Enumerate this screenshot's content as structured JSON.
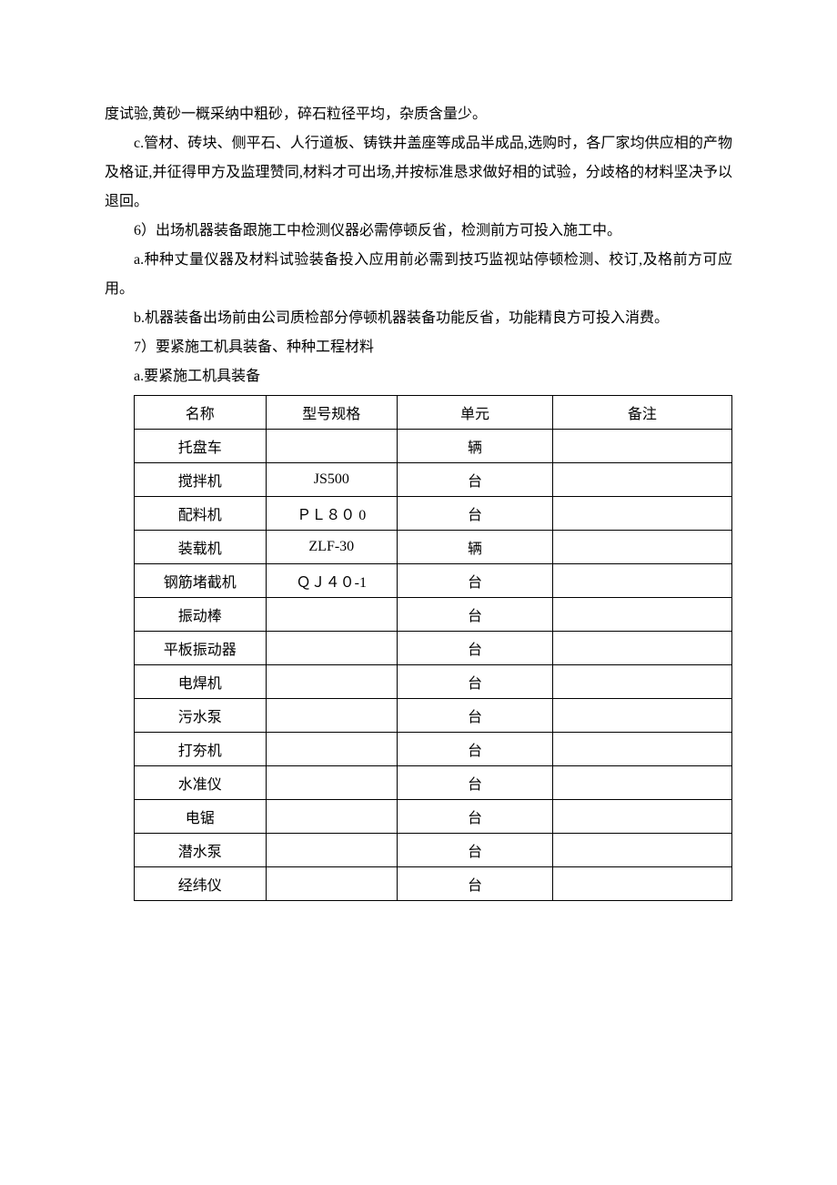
{
  "paragraphs": {
    "p1": "度试验,黄砂一概采纳中粗砂，碎石粒径平均，杂质含量少。",
    "p2": "c.管材、砖块、侧平石、人行道板、铸铁井盖座等成品半成品,选购时，各厂家均供应相的产物及格证,并征得甲方及监理赞同,材料才可出场,并按标准恳求做好相的试验，分歧格的材料坚决予以退回。",
    "p3": "6）出场机器装备跟施工中检测仪器必需停顿反省，检测前方可投入施工中。",
    "p4": "a.种种丈量仪器及材料试验装备投入应用前必需到技巧监视站停顿检测、校订,及格前方可应用。",
    "p5": "b.机器装备出场前由公司质检部分停顿机器装备功能反省，功能精良方可投入消费。",
    "p6": "7）要紧施工机具装备、种种工程材料",
    "p7": "a.要紧施工机具装备"
  },
  "table": {
    "columns": [
      "名称",
      "型号规格",
      "单元",
      "备注"
    ],
    "col_widths": [
      "22%",
      "22%",
      "26%",
      "30%"
    ],
    "rows": [
      [
        "托盘车",
        "",
        "辆",
        ""
      ],
      [
        "搅拌机",
        "JS500",
        "台",
        ""
      ],
      [
        "配料机",
        "ＰＬ８０ 0",
        "台",
        ""
      ],
      [
        "装载机",
        "ZLF-30",
        "辆",
        ""
      ],
      [
        "钢筋堵截机",
        "ＱＪ４０-1",
        "台",
        ""
      ],
      [
        "振动棒",
        "",
        "台",
        ""
      ],
      [
        "平板振动器",
        "",
        "台",
        ""
      ],
      [
        "电焊机",
        "",
        "台",
        ""
      ],
      [
        "污水泵",
        "",
        "台",
        ""
      ],
      [
        "打夯机",
        "",
        "台",
        ""
      ],
      [
        "水准仪",
        "",
        "台",
        ""
      ],
      [
        "电锯",
        "",
        "台",
        ""
      ],
      [
        "潜水泵",
        "",
        "台",
        ""
      ],
      [
        "经纬仪",
        "",
        "台",
        ""
      ]
    ]
  },
  "typography": {
    "font_family": "SimSun",
    "font_size_pt": 12,
    "line_height": 2.0,
    "text_color": "#000000",
    "background_color": "#ffffff",
    "border_color": "#000000"
  }
}
